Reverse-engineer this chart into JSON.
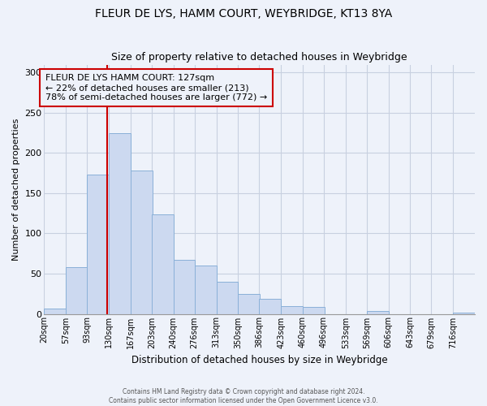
{
  "title": "FLEUR DE LYS, HAMM COURT, WEYBRIDGE, KT13 8YA",
  "subtitle": "Size of property relative to detached houses in Weybridge",
  "xlabel": "Distribution of detached houses by size in Weybridge",
  "ylabel": "Number of detached properties",
  "bar_color": "#ccd9f0",
  "bar_edge_color": "#8ab0d8",
  "vline_x": 127,
  "vline_color": "#cc0000",
  "annotation_title": "FLEUR DE LYS HAMM COURT: 127sqm",
  "annotation_line1": "← 22% of detached houses are smaller (213)",
  "annotation_line2": "78% of semi-detached houses are larger (772) →",
  "annotation_box_edge": "#cc0000",
  "bins": [
    20,
    57,
    93,
    130,
    167,
    203,
    240,
    276,
    313,
    350,
    386,
    423,
    460,
    496,
    533,
    569,
    606,
    643,
    679,
    716,
    753
  ],
  "counts": [
    7,
    58,
    173,
    225,
    178,
    124,
    67,
    60,
    40,
    25,
    19,
    10,
    9,
    0,
    0,
    4,
    0,
    0,
    0,
    2
  ],
  "ylim": [
    0,
    310
  ],
  "yticks": [
    0,
    50,
    100,
    150,
    200,
    250,
    300
  ],
  "footer_line1": "Contains HM Land Registry data © Crown copyright and database right 2024.",
  "footer_line2": "Contains public sector information licensed under the Open Government Licence v3.0.",
  "background_color": "#eef2fa"
}
